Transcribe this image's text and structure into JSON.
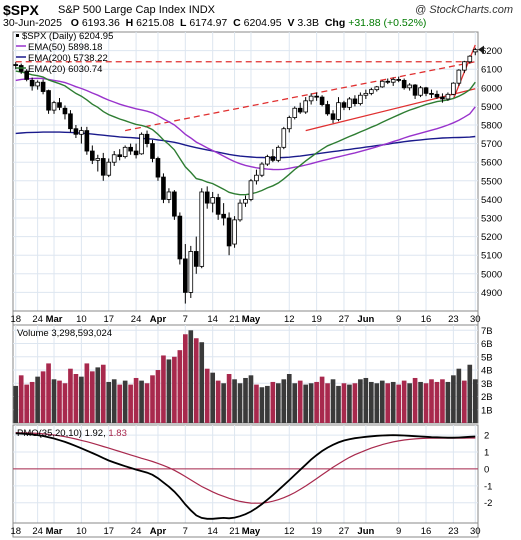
{
  "header": {
    "ticker": "$SPX",
    "description": "S&P 500 Large Cap Index",
    "exchange": "INDX",
    "brand": "@ StockCharts.com",
    "date": "30-Jun-2025",
    "open_label": "O",
    "open": "6193.36",
    "high_label": "H",
    "high": "6215.08",
    "low_label": "L",
    "low": "6174.97",
    "close_label": "C",
    "close": "6204.95",
    "volume_label": "V",
    "volume": "3.3B",
    "chg_label": "Chg",
    "chg": "+31.88 (+0.52%)"
  },
  "legend": {
    "price": "$SPX (Daily) 6204.95",
    "ema50": "EMA(50) 5898.18",
    "ema200": "EMA(200) 5738.22",
    "ema20": "EMA(20) 6030.74",
    "volume": "Volume 3,298,593,024",
    "pmo_prefix": "PMO(35,20,10) 1.92,",
    "pmo_signal": "1.83"
  },
  "colors": {
    "up": "#ffffff",
    "down": "#000000",
    "ema50": "#9933cc",
    "ema200": "#1a1a8c",
    "ema20": "#2e7d32",
    "volume_up": "#a8294d",
    "volume_down": "#3a3a3a",
    "pmo": "#000000",
    "pmo_signal": "#a8294d",
    "trend": "#e03030",
    "grid": "#dde6f0"
  },
  "chart_data": {
    "type": "candlestick",
    "price_ticks": [
      4900,
      5000,
      5100,
      5200,
      5300,
      5400,
      5500,
      5600,
      5700,
      5800,
      5900,
      6000,
      6100,
      6200
    ],
    "price_range": [
      4800,
      6300
    ],
    "x_labels": [
      "18",
      "24",
      "Mar",
      "10",
      "17",
      "24",
      "Apr",
      "7",
      "14",
      "21",
      "May",
      "12",
      "19",
      "27",
      "Jun",
      "9",
      "16",
      "23",
      "30"
    ],
    "x_label_index": [
      0,
      4,
      7,
      12,
      17,
      22,
      26,
      31,
      36,
      40,
      43,
      50,
      55,
      60,
      64,
      70,
      75,
      80,
      84
    ],
    "ohlc": [
      [
        6125,
        6138,
        6100,
        6120
      ],
      [
        6120,
        6130,
        6075,
        6088
      ],
      [
        6090,
        6100,
        6035,
        6045
      ],
      [
        6040,
        6055,
        5985,
        6010
      ],
      [
        6010,
        6040,
        5990,
        6030
      ],
      [
        6030,
        6045,
        5965,
        5980
      ],
      [
        5985,
        5990,
        5860,
        5880
      ],
      [
        5880,
        5930,
        5860,
        5920
      ],
      [
        5920,
        5945,
        5880,
        5895
      ],
      [
        5890,
        5905,
        5830,
        5860
      ],
      [
        5860,
        5880,
        5760,
        5780
      ],
      [
        5780,
        5800,
        5730,
        5750
      ],
      [
        5750,
        5790,
        5700,
        5770
      ],
      [
        5770,
        5790,
        5640,
        5660
      ],
      [
        5660,
        5690,
        5590,
        5610
      ],
      [
        5610,
        5640,
        5550,
        5620
      ],
      [
        5620,
        5650,
        5500,
        5530
      ],
      [
        5530,
        5620,
        5520,
        5600
      ],
      [
        5600,
        5660,
        5580,
        5640
      ],
      [
        5640,
        5670,
        5610,
        5630
      ],
      [
        5630,
        5690,
        5620,
        5680
      ],
      [
        5680,
        5700,
        5640,
        5660
      ],
      [
        5660,
        5700,
        5620,
        5640
      ],
      [
        5645,
        5760,
        5640,
        5750
      ],
      [
        5750,
        5770,
        5680,
        5700
      ],
      [
        5700,
        5720,
        5600,
        5620
      ],
      [
        5620,
        5630,
        5500,
        5520
      ],
      [
        5520,
        5540,
        5380,
        5400
      ],
      [
        5400,
        5460,
        5380,
        5440
      ],
      [
        5440,
        5450,
        5290,
        5310
      ],
      [
        5310,
        5330,
        5050,
        5080
      ],
      [
        5080,
        5160,
        4840,
        4900
      ],
      [
        4900,
        5150,
        4870,
        5120
      ],
      [
        5120,
        5200,
        5000,
        5040
      ],
      [
        5040,
        5460,
        5030,
        5440
      ],
      [
        5440,
        5470,
        5350,
        5380
      ],
      [
        5380,
        5440,
        5330,
        5410
      ],
      [
        5410,
        5430,
        5290,
        5320
      ],
      [
        5320,
        5380,
        5260,
        5300
      ],
      [
        5300,
        5330,
        5100,
        5150
      ],
      [
        5160,
        5310,
        5140,
        5290
      ],
      [
        5290,
        5400,
        5280,
        5380
      ],
      [
        5380,
        5420,
        5360,
        5400
      ],
      [
        5400,
        5510,
        5390,
        5500
      ],
      [
        5500,
        5560,
        5480,
        5530
      ],
      [
        5530,
        5600,
        5520,
        5590
      ],
      [
        5590,
        5640,
        5580,
        5630
      ],
      [
        5630,
        5670,
        5600,
        5610
      ],
      [
        5610,
        5690,
        5600,
        5680
      ],
      [
        5680,
        5790,
        5670,
        5780
      ],
      [
        5780,
        5850,
        5760,
        5840
      ],
      [
        5840,
        5900,
        5830,
        5890
      ],
      [
        5890,
        5920,
        5860,
        5870
      ],
      [
        5870,
        5950,
        5860,
        5930
      ],
      [
        5930,
        5970,
        5910,
        5955
      ],
      [
        5955,
        5975,
        5930,
        5950
      ],
      [
        5950,
        5960,
        5900,
        5910
      ],
      [
        5910,
        5930,
        5850,
        5860
      ],
      [
        5860,
        5880,
        5810,
        5830
      ],
      [
        5830,
        5950,
        5820,
        5920
      ],
      [
        5920,
        5930,
        5880,
        5895
      ],
      [
        5895,
        5950,
        5880,
        5940
      ],
      [
        5940,
        5960,
        5900,
        5915
      ],
      [
        5915,
        5975,
        5905,
        5960
      ],
      [
        5960,
        5990,
        5940,
        5970
      ],
      [
        5970,
        6000,
        5960,
        5990
      ],
      [
        5990,
        6010,
        5980,
        6005
      ],
      [
        6005,
        6040,
        6000,
        6035
      ],
      [
        6035,
        6050,
        6020,
        6030
      ],
      [
        6030,
        6055,
        6010,
        6045
      ],
      [
        6045,
        6060,
        6030,
        6040
      ],
      [
        6040,
        6050,
        5990,
        6000
      ],
      [
        6000,
        6025,
        5985,
        6015
      ],
      [
        6015,
        6020,
        5940,
        5960
      ],
      [
        5960,
        6010,
        5950,
        6000
      ],
      [
        6000,
        6005,
        5955,
        5970
      ],
      [
        5970,
        5990,
        5945,
        5965
      ],
      [
        5965,
        5985,
        5940,
        5950
      ],
      [
        5950,
        5970,
        5920,
        5940
      ],
      [
        5940,
        5975,
        5930,
        5965
      ],
      [
        5965,
        6030,
        5960,
        6025
      ],
      [
        6025,
        6100,
        6010,
        6095
      ],
      [
        6095,
        6145,
        6080,
        6140
      ],
      [
        6140,
        6175,
        6130,
        6170
      ],
      [
        6193,
        6215,
        6175,
        6205
      ]
    ],
    "ema20": [
      6090,
      6085,
      6078,
      6070,
      6065,
      6058,
      6042,
      6032,
      6022,
      6010,
      5990,
      5970,
      5955,
      5935,
      5912,
      5895,
      5872,
      5856,
      5844,
      5832,
      5823,
      5813,
      5803,
      5798,
      5789,
      5775,
      5750,
      5720,
      5695,
      5666,
      5620,
      5575,
      5545,
      5512,
      5505,
      5493,
      5485,
      5470,
      5455,
      5438,
      5430,
      5425,
      5425,
      5430,
      5437,
      5448,
      5462,
      5473,
      5488,
      5510,
      5535,
      5561,
      5583,
      5607,
      5628,
      5650,
      5670,
      5688,
      5700,
      5712,
      5725,
      5738,
      5750,
      5763,
      5775,
      5788,
      5800,
      5815,
      5828,
      5842,
      5855,
      5868,
      5880,
      5890,
      5900,
      5910,
      5918,
      5926,
      5930,
      5935,
      5943,
      5955,
      5970,
      5990,
      6030
    ],
    "ema50": [
      6040,
      6045,
      6048,
      6050,
      6051,
      6050,
      6045,
      6040,
      6035,
      6028,
      6018,
      6006,
      5996,
      5985,
      5972,
      5960,
      5946,
      5934,
      5923,
      5912,
      5903,
      5895,
      5887,
      5881,
      5874,
      5865,
      5850,
      5833,
      5817,
      5800,
      5776,
      5750,
      5730,
      5708,
      5693,
      5677,
      5663,
      5648,
      5633,
      5617,
      5603,
      5592,
      5583,
      5576,
      5570,
      5566,
      5563,
      5561,
      5560,
      5562,
      5567,
      5573,
      5578,
      5585,
      5592,
      5600,
      5608,
      5615,
      5622,
      5629,
      5636,
      5643,
      5650,
      5658,
      5666,
      5674,
      5683,
      5692,
      5701,
      5711,
      5720,
      5730,
      5740,
      5748,
      5756,
      5764,
      5772,
      5780,
      5790,
      5800,
      5812,
      5826,
      5842,
      5860,
      5898
    ],
    "ema200": [
      5755,
      5757,
      5759,
      5760,
      5761,
      5762,
      5762,
      5762,
      5762,
      5761,
      5760,
      5758,
      5756,
      5754,
      5751,
      5748,
      5745,
      5742,
      5739,
      5736,
      5734,
      5732,
      5730,
      5728,
      5726,
      5724,
      5720,
      5716,
      5712,
      5707,
      5700,
      5692,
      5685,
      5678,
      5672,
      5666,
      5660,
      5654,
      5648,
      5642,
      5637,
      5633,
      5630,
      5628,
      5626,
      5625,
      5624,
      5624,
      5624,
      5625,
      5627,
      5630,
      5633,
      5637,
      5641,
      5645,
      5649,
      5653,
      5657,
      5661,
      5665,
      5669,
      5673,
      5677,
      5681,
      5685,
      5689,
      5693,
      5697,
      5702,
      5706,
      5710,
      5714,
      5717,
      5720,
      5723,
      5726,
      5728,
      5730,
      5731,
      5732,
      5733,
      5734,
      5735,
      5738
    ],
    "trend_lines": [
      {
        "style": "dashed",
        "from": [
          20,
          5770
        ],
        "to": [
          84,
          6140
        ]
      },
      {
        "style": "dashed",
        "from": [
          0,
          6140
        ],
        "to": [
          84,
          6140
        ]
      },
      {
        "style": "solid",
        "from": [
          53,
          5770
        ],
        "to": [
          84,
          5995
        ]
      },
      {
        "style": "solid",
        "from": [
          80,
          5940
        ],
        "to": [
          84,
          6230
        ]
      }
    ],
    "volume_ticks": [
      "1B",
      "2B",
      "3B",
      "4B",
      "5B",
      "6B",
      "7B"
    ],
    "volume_range": [
      0,
      7.4
    ],
    "volume": [
      [
        2.8,
        "down"
      ],
      [
        3.6,
        "up"
      ],
      [
        2.9,
        "up"
      ],
      [
        3.1,
        "up"
      ],
      [
        3.5,
        "down"
      ],
      [
        3.9,
        "up"
      ],
      [
        4.5,
        "up"
      ],
      [
        3.3,
        "down"
      ],
      [
        3.2,
        "up"
      ],
      [
        3.0,
        "up"
      ],
      [
        4.1,
        "up"
      ],
      [
        3.7,
        "up"
      ],
      [
        3.5,
        "down"
      ],
      [
        4.5,
        "up"
      ],
      [
        3.9,
        "up"
      ],
      [
        4.2,
        "down"
      ],
      [
        4.4,
        "up"
      ],
      [
        3.1,
        "down"
      ],
      [
        3.3,
        "down"
      ],
      [
        2.9,
        "up"
      ],
      [
        3.2,
        "down"
      ],
      [
        2.9,
        "up"
      ],
      [
        3.4,
        "up"
      ],
      [
        3.2,
        "down"
      ],
      [
        3.0,
        "up"
      ],
      [
        3.6,
        "up"
      ],
      [
        4.0,
        "up"
      ],
      [
        5.1,
        "up"
      ],
      [
        4.8,
        "down"
      ],
      [
        5.0,
        "up"
      ],
      [
        5.5,
        "up"
      ],
      [
        6.7,
        "up"
      ],
      [
        7.0,
        "down"
      ],
      [
        6.4,
        "up"
      ],
      [
        6.1,
        "down"
      ],
      [
        4.1,
        "up"
      ],
      [
        3.8,
        "down"
      ],
      [
        3.2,
        "up"
      ],
      [
        3.0,
        "down"
      ],
      [
        3.7,
        "up"
      ],
      [
        3.3,
        "down"
      ],
      [
        3.0,
        "down"
      ],
      [
        3.4,
        "down"
      ],
      [
        3.6,
        "down"
      ],
      [
        2.9,
        "up"
      ],
      [
        2.7,
        "down"
      ],
      [
        2.8,
        "down"
      ],
      [
        3.1,
        "up"
      ],
      [
        3.0,
        "down"
      ],
      [
        3.3,
        "down"
      ],
      [
        3.7,
        "down"
      ],
      [
        3.0,
        "down"
      ],
      [
        3.2,
        "up"
      ],
      [
        2.9,
        "down"
      ],
      [
        3.0,
        "down"
      ],
      [
        3.1,
        "up"
      ],
      [
        3.5,
        "up"
      ],
      [
        3.0,
        "up"
      ],
      [
        3.3,
        "down"
      ],
      [
        2.8,
        "down"
      ],
      [
        3.0,
        "up"
      ],
      [
        2.9,
        "down"
      ],
      [
        3.0,
        "up"
      ],
      [
        3.3,
        "down"
      ],
      [
        3.4,
        "down"
      ],
      [
        3.1,
        "down"
      ],
      [
        3.0,
        "down"
      ],
      [
        3.2,
        "down"
      ],
      [
        3.0,
        "up"
      ],
      [
        3.1,
        "down"
      ],
      [
        2.9,
        "up"
      ],
      [
        3.2,
        "up"
      ],
      [
        3.0,
        "down"
      ],
      [
        3.4,
        "up"
      ],
      [
        3.1,
        "down"
      ],
      [
        3.0,
        "up"
      ],
      [
        3.3,
        "up"
      ],
      [
        3.1,
        "up"
      ],
      [
        3.3,
        "up"
      ],
      [
        3.1,
        "down"
      ],
      [
        3.6,
        "down"
      ],
      [
        4.1,
        "down"
      ],
      [
        3.2,
        "up"
      ],
      [
        4.4,
        "down"
      ],
      [
        3.3,
        "down"
      ]
    ],
    "pmo_ticks": [
      -2,
      -1,
      0,
      1,
      2
    ],
    "pmo_range": [
      -3.2,
      2.6
    ],
    "pmo": [
      2.1,
      2.09,
      2.07,
      2.04,
      2.0,
      1.95,
      1.88,
      1.8,
      1.7,
      1.6,
      1.48,
      1.35,
      1.22,
      1.08,
      0.94,
      0.8,
      0.64,
      0.5,
      0.38,
      0.27,
      0.16,
      0.06,
      -0.04,
      -0.13,
      -0.22,
      -0.35,
      -0.55,
      -0.8,
      -1.05,
      -1.35,
      -1.7,
      -2.1,
      -2.45,
      -2.75,
      -2.9,
      -2.95,
      -2.95,
      -2.92,
      -2.9,
      -2.92,
      -2.88,
      -2.8,
      -2.68,
      -2.52,
      -2.32,
      -2.08,
      -1.82,
      -1.55,
      -1.26,
      -0.96,
      -0.66,
      -0.36,
      -0.05,
      0.25,
      0.55,
      0.82,
      1.06,
      1.26,
      1.43,
      1.57,
      1.68,
      1.76,
      1.82,
      1.86,
      1.9,
      1.93,
      1.96,
      1.98,
      1.99,
      2.0,
      1.99,
      1.98,
      1.96,
      1.94,
      1.92,
      1.9,
      1.88,
      1.87,
      1.86,
      1.85,
      1.85,
      1.86,
      1.88,
      1.9,
      1.92
    ],
    "pmo_signal": [
      2.15,
      2.14,
      2.13,
      2.12,
      2.1,
      2.08,
      2.05,
      2.01,
      1.96,
      1.91,
      1.84,
      1.77,
      1.69,
      1.61,
      1.52,
      1.43,
      1.33,
      1.23,
      1.13,
      1.03,
      0.93,
      0.83,
      0.73,
      0.63,
      0.54,
      0.44,
      0.33,
      0.21,
      0.07,
      -0.08,
      -0.26,
      -0.45,
      -0.65,
      -0.85,
      -1.04,
      -1.2,
      -1.36,
      -1.5,
      -1.62,
      -1.74,
      -1.84,
      -1.92,
      -1.98,
      -2.02,
      -2.03,
      -2.02,
      -1.98,
      -1.91,
      -1.82,
      -1.7,
      -1.56,
      -1.4,
      -1.21,
      -1.01,
      -0.8,
      -0.57,
      -0.35,
      -0.12,
      0.1,
      0.3,
      0.5,
      0.68,
      0.84,
      0.98,
      1.11,
      1.23,
      1.34,
      1.44,
      1.52,
      1.6,
      1.66,
      1.71,
      1.75,
      1.78,
      1.8,
      1.81,
      1.82,
      1.82,
      1.82,
      1.82,
      1.82,
      1.82,
      1.82,
      1.83,
      1.83
    ]
  }
}
